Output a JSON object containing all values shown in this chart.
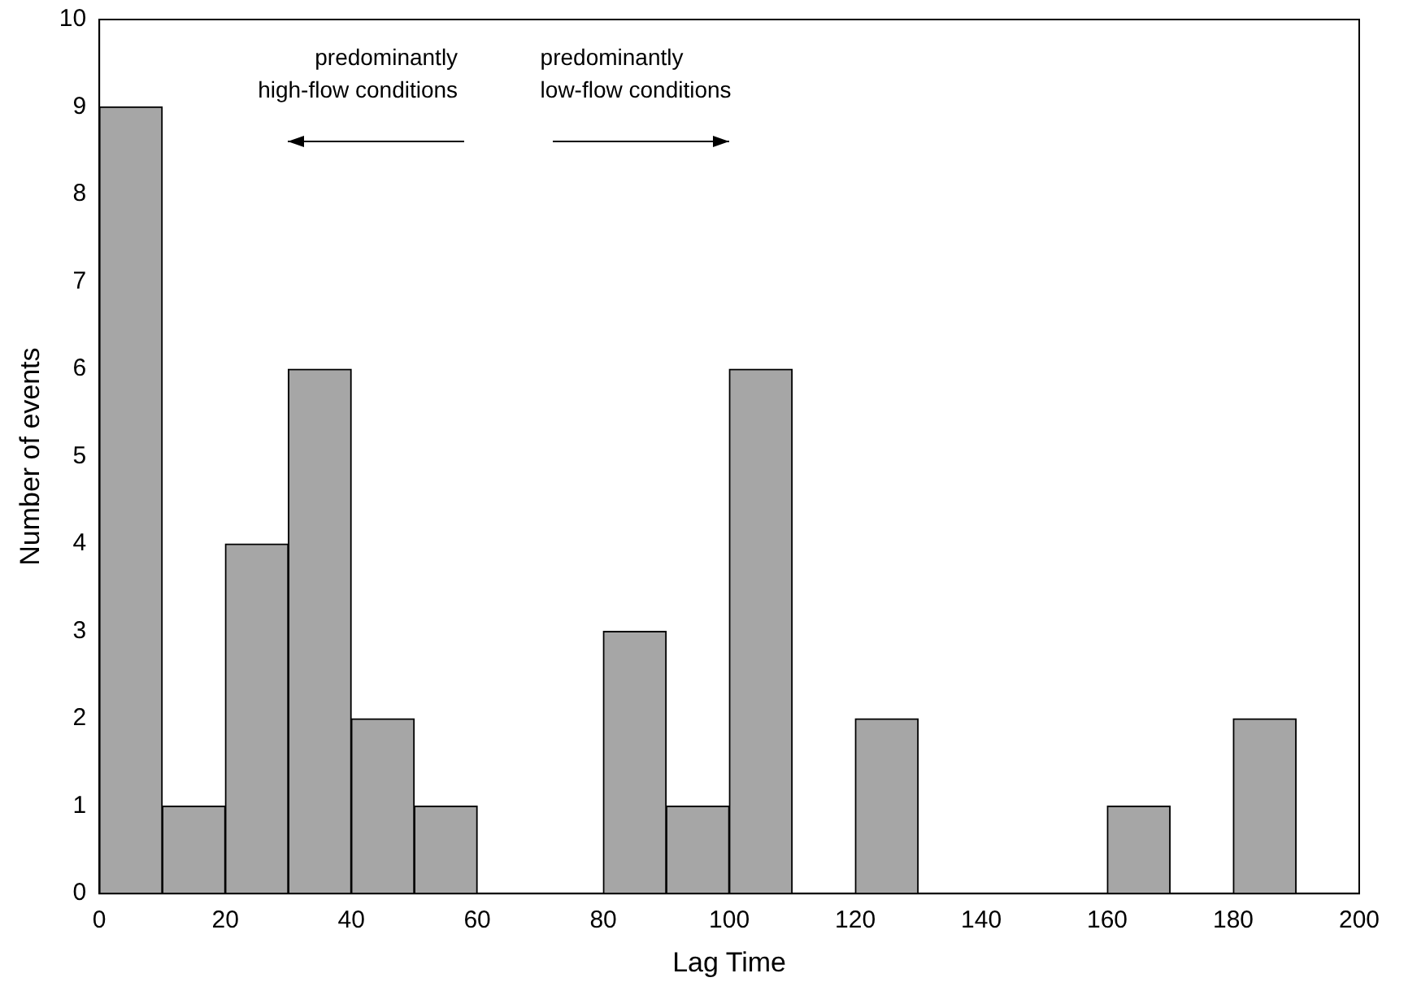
{
  "chart_data": {
    "type": "histogram",
    "xlabel": "Lag Time",
    "ylabel": "Number of events",
    "bins": [
      0,
      10,
      20,
      30,
      40,
      50,
      60,
      70,
      80,
      90,
      100,
      110,
      120,
      130,
      140,
      150,
      160,
      170,
      180,
      190
    ],
    "values": [
      9,
      1,
      4,
      6,
      2,
      1,
      0,
      0,
      3,
      1,
      6,
      0,
      2,
      0,
      0,
      0,
      1,
      0,
      2
    ],
    "color": "#a6a6a6",
    "xlim": [
      0,
      200
    ],
    "xticks": [
      0,
      20,
      40,
      60,
      80,
      100,
      120,
      140,
      160,
      180,
      200
    ],
    "ylim": [
      0,
      10
    ],
    "yticks": [
      0,
      1,
      2,
      3,
      4,
      5,
      6,
      7,
      8,
      9,
      10
    ],
    "grid": false,
    "legend": false,
    "annotations": [
      "predominantly\nhigh-flow conditions",
      "predominantly\nlow-flow conditions"
    ]
  }
}
